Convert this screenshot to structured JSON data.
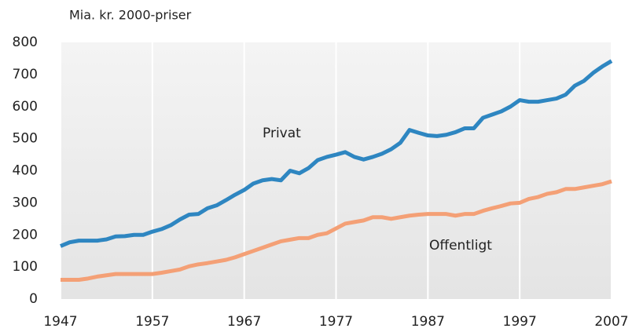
{
  "chart_data": {
    "type": "line",
    "y_label": "Mia. kr. 2000-priser",
    "annotations": [
      "Privat",
      "Offentligt"
    ],
    "x": [
      1947,
      1948,
      1949,
      1950,
      1951,
      1952,
      1953,
      1954,
      1955,
      1956,
      1957,
      1958,
      1959,
      1960,
      1961,
      1962,
      1963,
      1964,
      1965,
      1966,
      1967,
      1968,
      1969,
      1970,
      1971,
      1972,
      1973,
      1974,
      1975,
      1976,
      1977,
      1978,
      1979,
      1980,
      1981,
      1982,
      1983,
      1984,
      1985,
      1986,
      1987,
      1988,
      1989,
      1990,
      1991,
      1992,
      1993,
      1994,
      1995,
      1996,
      1997,
      1998,
      1999,
      2000,
      2001,
      2002,
      2003,
      2004,
      2005,
      2006,
      2007
    ],
    "series": [
      {
        "name": "Privat",
        "color": "#2e86c1",
        "values": [
          165,
          177,
          182,
          182,
          182,
          186,
          195,
          196,
          200,
          200,
          210,
          218,
          230,
          248,
          263,
          265,
          283,
          292,
          308,
          325,
          340,
          360,
          370,
          374,
          370,
          400,
          392,
          408,
          433,
          443,
          450,
          458,
          443,
          435,
          443,
          453,
          467,
          487,
          527,
          518,
          510,
          508,
          512,
          520,
          532,
          532,
          565,
          575,
          585,
          600,
          620,
          615,
          615,
          620,
          625,
          637,
          665,
          680,
          705,
          725,
          742
        ]
      },
      {
        "name": "Offentligt",
        "color": "#f4a076",
        "values": [
          60,
          60,
          60,
          64,
          70,
          74,
          78,
          78,
          78,
          78,
          78,
          82,
          87,
          92,
          102,
          108,
          112,
          117,
          122,
          130,
          140,
          150,
          160,
          170,
          180,
          185,
          190,
          190,
          200,
          205,
          220,
          235,
          240,
          245,
          255,
          255,
          250,
          255,
          260,
          263,
          265,
          265,
          265,
          260,
          265,
          265,
          275,
          283,
          290,
          298,
          300,
          312,
          318,
          328,
          333,
          343,
          343,
          348,
          353,
          358,
          367
        ]
      }
    ],
    "xlim": [
      1947,
      2007
    ],
    "xticks": [
      1947,
      1957,
      1967,
      1977,
      1987,
      1997,
      2007
    ],
    "ylim": [
      0,
      800
    ],
    "yticks": [
      0,
      100,
      200,
      300,
      400,
      500,
      600,
      700,
      800
    ],
    "grid": "x"
  }
}
